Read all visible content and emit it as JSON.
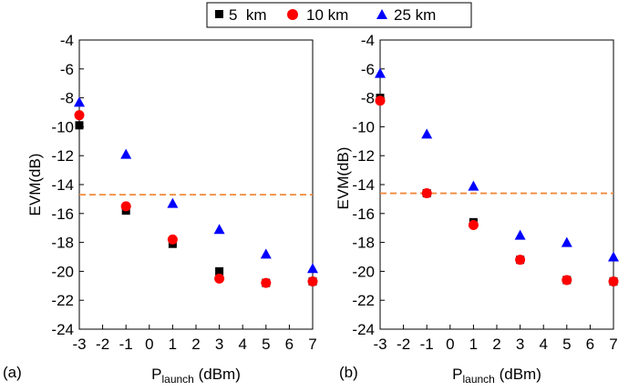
{
  "legend": {
    "entries": [
      {
        "label": "5  km",
        "marker": "square",
        "color": "#000000"
      },
      {
        "label": "10 km",
        "marker": "circle",
        "color": "#ff0000"
      },
      {
        "label": "25 km",
        "marker": "triangle",
        "color": "#0000ff"
      }
    ]
  },
  "threshold_color": "#f08a3c",
  "chart_data": [
    {
      "type": "scatter",
      "panel_label": "(a)",
      "xlabel": {
        "main": "P",
        "sub": "launch",
        "rest": " (dBm)"
      },
      "ylabel": "EVM(dB)",
      "xlim": [
        -3,
        7
      ],
      "ylim": [
        -24,
        -4
      ],
      "xticks": [
        -3,
        -2,
        -1,
        0,
        1,
        2,
        3,
        4,
        5,
        6,
        7
      ],
      "yticks": [
        -24,
        -22,
        -20,
        -18,
        -16,
        -14,
        -12,
        -10,
        -8,
        -6,
        -4
      ],
      "threshold_y": -14.7,
      "legend": "top-center",
      "series": [
        {
          "name": "5  km",
          "marker": "square",
          "color": "#000000",
          "x": [
            -3,
            -1,
            1,
            3,
            5,
            7
          ],
          "y": [
            -9.9,
            -15.8,
            -18.1,
            -20.0,
            -20.8,
            -20.7
          ]
        },
        {
          "name": "10 km",
          "marker": "circle",
          "color": "#ff0000",
          "x": [
            -3,
            -1,
            1,
            3,
            5,
            7
          ],
          "y": [
            -9.2,
            -15.5,
            -17.8,
            -20.5,
            -20.8,
            -20.7
          ]
        },
        {
          "name": "25 km",
          "marker": "triangle",
          "color": "#0000ff",
          "x": [
            -3,
            -1,
            1,
            3,
            5,
            7
          ],
          "y": [
            -8.3,
            -11.9,
            -15.3,
            -17.1,
            -18.8,
            -19.8
          ]
        }
      ]
    },
    {
      "type": "scatter",
      "panel_label": "(b)",
      "xlabel": {
        "main": "P",
        "sub": "launch",
        "rest": " (dBm)"
      },
      "ylabel": "EVM(dB)",
      "xlim": [
        -3,
        7
      ],
      "ylim": [
        -24,
        -4
      ],
      "xticks": [
        -3,
        -2,
        -1,
        0,
        1,
        2,
        3,
        4,
        5,
        6,
        7
      ],
      "yticks": [
        -24,
        -22,
        -20,
        -18,
        -16,
        -14,
        -12,
        -10,
        -8,
        -6,
        -4
      ],
      "threshold_y": -14.6,
      "legend": "top-center",
      "series": [
        {
          "name": "5  km",
          "marker": "square",
          "color": "#000000",
          "x": [
            -3,
            -1,
            1,
            3,
            5,
            7
          ],
          "y": [
            -8.0,
            -14.6,
            -16.6,
            -19.2,
            -20.6,
            -20.7
          ]
        },
        {
          "name": "10 km",
          "marker": "circle",
          "color": "#ff0000",
          "x": [
            -3,
            -1,
            1,
            3,
            5,
            7
          ],
          "y": [
            -8.2,
            -14.6,
            -16.8,
            -19.2,
            -20.6,
            -20.7
          ]
        },
        {
          "name": "25 km",
          "marker": "triangle",
          "color": "#0000ff",
          "x": [
            -3,
            -1,
            1,
            3,
            5,
            7
          ],
          "y": [
            -6.3,
            -10.5,
            -14.1,
            -17.5,
            -18.0,
            -19.0
          ]
        }
      ]
    }
  ]
}
